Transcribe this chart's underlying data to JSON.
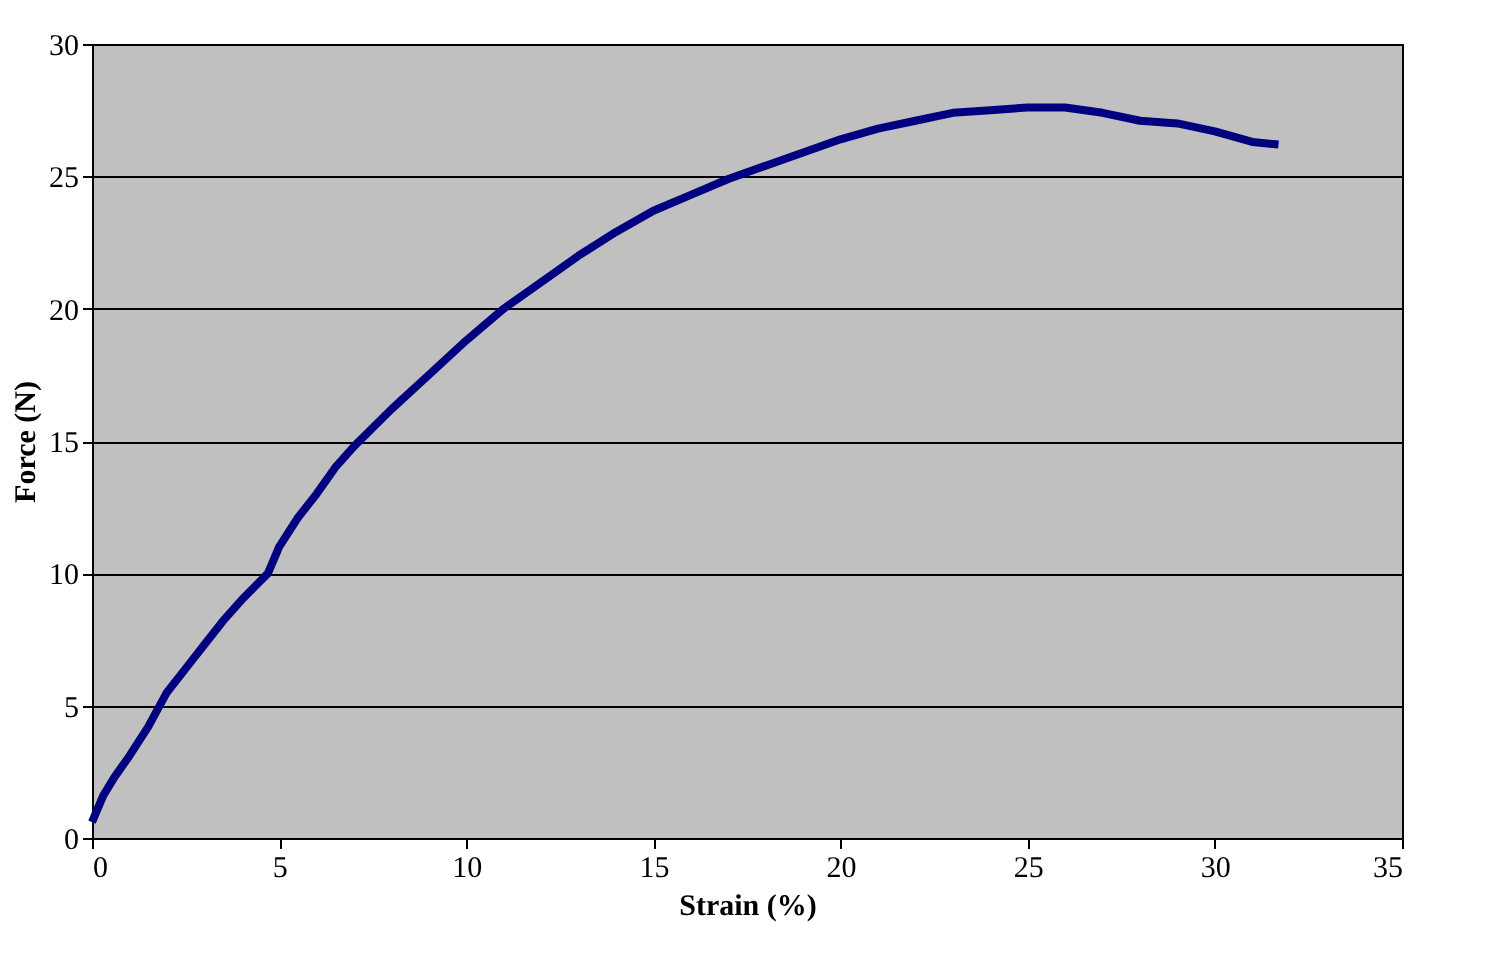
{
  "chart_data": {
    "type": "line",
    "xlabel": "Strain (%)",
    "ylabel": "Force (N)",
    "x": [
      0,
      0.3,
      0.6,
      1,
      1.5,
      2,
      2.5,
      3,
      3.5,
      4,
      4.7,
      5,
      5.5,
      6,
      6.5,
      7,
      7.5,
      8,
      9,
      10,
      11,
      12,
      13,
      14,
      15,
      16,
      17,
      18,
      19,
      20,
      21,
      22,
      23,
      24,
      25,
      26,
      27,
      28,
      29,
      30,
      31,
      31.7
    ],
    "series": [
      {
        "color": "#000080",
        "values": [
          0.6,
          1.6,
          2.3,
          3.1,
          4.2,
          5.5,
          6.4,
          7.3,
          8.2,
          9.0,
          10.0,
          11.0,
          12.1,
          13.0,
          14.0,
          14.8,
          15.5,
          16.2,
          17.5,
          18.8,
          20.0,
          21.0,
          22.0,
          22.9,
          23.7,
          24.3,
          24.9,
          25.4,
          25.9,
          26.4,
          26.8,
          27.1,
          27.4,
          27.5,
          27.6,
          27.6,
          27.4,
          27.1,
          27.0,
          26.7,
          26.3,
          26.2
        ]
      }
    ],
    "xlim": [
      0,
      35
    ],
    "xticks": [
      0,
      5,
      10,
      15,
      20,
      25,
      30,
      35
    ],
    "ylim": [
      0,
      30
    ],
    "yticks": [
      0,
      5,
      10,
      15,
      20,
      25,
      30
    ],
    "grid": "y",
    "marker": "none",
    "line_style": "solid"
  }
}
